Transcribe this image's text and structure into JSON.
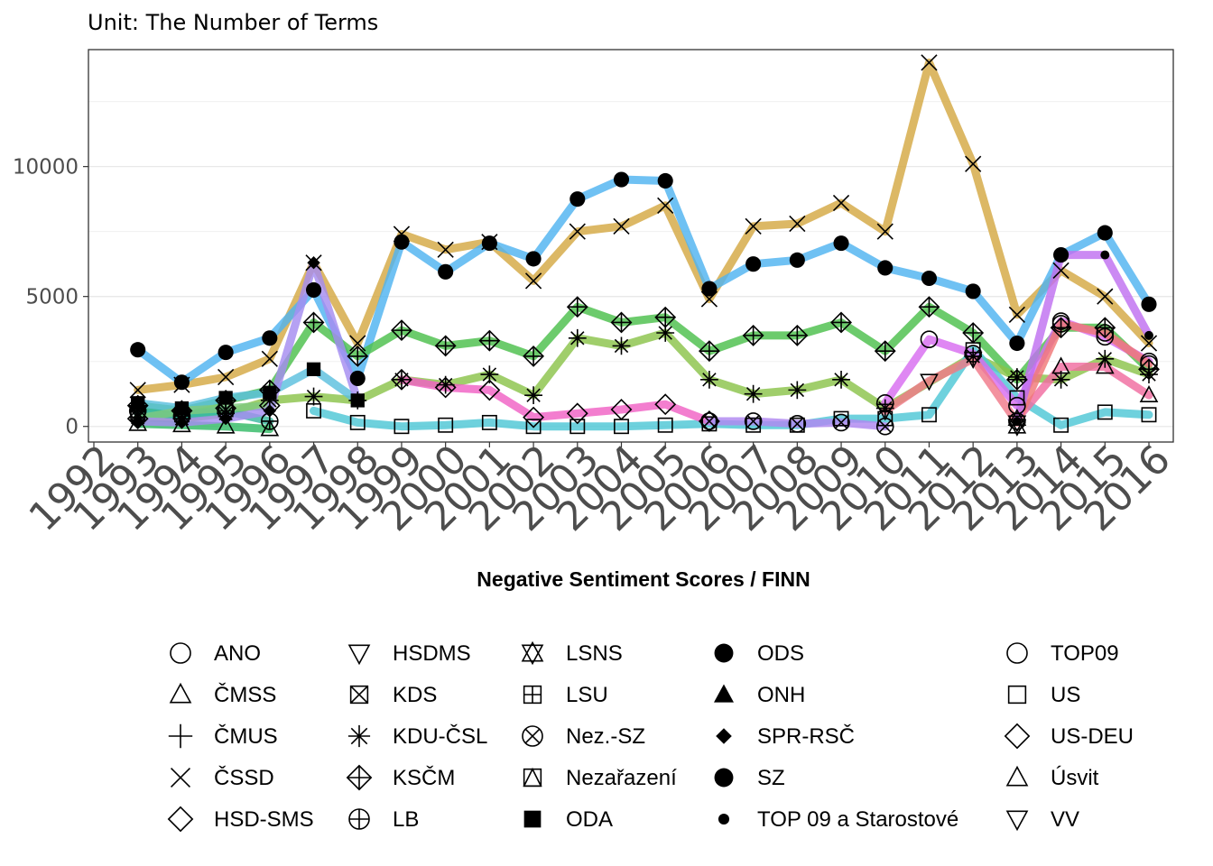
{
  "chart_data": {
    "type": "line",
    "title": "",
    "subtitle": "Unit: The Number of Terms",
    "xlabel": "Negative Sentiment Scores / FINN",
    "ylabel": "",
    "x": [
      1992,
      1993,
      1994,
      1995,
      1996,
      1997,
      1998,
      1999,
      2000,
      2001,
      2002,
      2003,
      2004,
      2005,
      2006,
      2007,
      2008,
      2009,
      2010,
      2011,
      2012,
      2013,
      2014,
      2015,
      2016
    ],
    "x_tick_labels": [
      "1992",
      "1993",
      "1994",
      "1995",
      "1996",
      "1997",
      "1998",
      "1999",
      "2000",
      "2001",
      "2002",
      "2003",
      "2004",
      "2005",
      "2006",
      "2007",
      "2008",
      "2009",
      "2010",
      "2011",
      "2012",
      "2013",
      "2014",
      "2015",
      "2016"
    ],
    "y_ticks": [
      0,
      5000,
      10000
    ],
    "y_tick_labels": [
      "0",
      "5000",
      "10000"
    ],
    "ylim": [
      -600,
      14500
    ],
    "grid": true,
    "legend_position": "bottom",
    "series": [
      {
        "name": "ČSSD",
        "color": "#D4A843",
        "shape": "x",
        "points": [
          [
            1993,
            1400
          ],
          [
            1994,
            1600
          ],
          [
            1995,
            1900
          ],
          [
            1996,
            2600
          ],
          [
            1997,
            6300
          ],
          [
            1998,
            3200
          ],
          [
            1999,
            7400
          ],
          [
            2000,
            6800
          ],
          [
            2001,
            7100
          ],
          [
            2002,
            5600
          ],
          [
            2003,
            7500
          ],
          [
            2004,
            7700
          ],
          [
            2005,
            8500
          ],
          [
            2006,
            4900
          ],
          [
            2007,
            7700
          ],
          [
            2008,
            7800
          ],
          [
            2009,
            8600
          ],
          [
            2010,
            7500
          ],
          [
            2011,
            14000
          ],
          [
            2012,
            10100
          ],
          [
            2013,
            4300
          ],
          [
            2014,
            6000
          ],
          [
            2015,
            5000
          ],
          [
            2016,
            3200
          ]
        ]
      },
      {
        "name": "ODS",
        "color": "#4FB3F0",
        "shape": "circle-filled",
        "points": [
          [
            1993,
            2950
          ],
          [
            1994,
            1700
          ],
          [
            1995,
            2850
          ],
          [
            1996,
            3400
          ],
          [
            1997,
            5250
          ],
          [
            1998,
            1850
          ],
          [
            1999,
            7100
          ],
          [
            2000,
            5950
          ],
          [
            2001,
            7050
          ],
          [
            2002,
            6450
          ],
          [
            2003,
            8750
          ],
          [
            2004,
            9500
          ],
          [
            2005,
            9450
          ],
          [
            2006,
            5300
          ],
          [
            2007,
            6250
          ],
          [
            2008,
            6400
          ],
          [
            2009,
            7050
          ],
          [
            2010,
            6100
          ],
          [
            2011,
            5700
          ],
          [
            2012,
            5200
          ],
          [
            2013,
            3200
          ],
          [
            2014,
            6600
          ],
          [
            2015,
            7450
          ],
          [
            2016,
            4700
          ]
        ]
      },
      {
        "name": "KSČM",
        "color": "#4CC04C",
        "shape": "diamond-plus",
        "points": [
          [
            1993,
            800
          ],
          [
            1994,
            600
          ],
          [
            1995,
            1000
          ],
          [
            1996,
            1400
          ],
          [
            1997,
            4000
          ],
          [
            1998,
            2700
          ],
          [
            1999,
            3700
          ],
          [
            2000,
            3100
          ],
          [
            2001,
            3300
          ],
          [
            2002,
            2700
          ],
          [
            2003,
            4600
          ],
          [
            2004,
            4000
          ],
          [
            2005,
            4200
          ],
          [
            2006,
            2900
          ],
          [
            2007,
            3500
          ],
          [
            2008,
            3500
          ],
          [
            2009,
            4000
          ],
          [
            2010,
            2900
          ],
          [
            2011,
            4600
          ],
          [
            2012,
            3600
          ],
          [
            2013,
            1800
          ],
          [
            2014,
            3800
          ],
          [
            2015,
            3800
          ],
          [
            2016,
            2200
          ]
        ]
      },
      {
        "name": "KDU-ČSL",
        "color": "#8BC34A",
        "shape": "asterisk",
        "points": [
          [
            1993,
            350
          ],
          [
            1994,
            300
          ],
          [
            1995,
            500
          ],
          [
            1996,
            1000
          ],
          [
            1997,
            1150
          ],
          [
            1998,
            1000
          ],
          [
            1999,
            1800
          ],
          [
            2000,
            1600
          ],
          [
            2001,
            2000
          ],
          [
            2002,
            1200
          ],
          [
            2003,
            3400
          ],
          [
            2004,
            3100
          ],
          [
            2005,
            3600
          ],
          [
            2006,
            1800
          ],
          [
            2007,
            1250
          ],
          [
            2008,
            1400
          ],
          [
            2009,
            1800
          ],
          [
            2010,
            700
          ],
          [
            2012,
            2700
          ],
          [
            2013,
            1900
          ],
          [
            2014,
            1800
          ],
          [
            2015,
            2600
          ],
          [
            2016,
            2000
          ]
        ]
      },
      {
        "name": "KDS",
        "color": "#2EC4A6",
        "shape": "square-x",
        "points": [
          [
            1993,
            500
          ],
          [
            1994,
            450
          ],
          [
            1995,
            650
          ]
        ]
      },
      {
        "name": "LB",
        "color": "#3CB8A0",
        "shape": "circle-plus",
        "points": [
          [
            1993,
            600
          ],
          [
            1994,
            400
          ],
          [
            1995,
            600
          ],
          [
            1996,
            200
          ]
        ]
      },
      {
        "name": "ODA",
        "color": "#5BC0DE",
        "shape": "square-filled",
        "points": [
          [
            1993,
            900
          ],
          [
            1994,
            700
          ],
          [
            1995,
            1100
          ],
          [
            1996,
            1300
          ],
          [
            1997,
            2200
          ],
          [
            1998,
            1000
          ]
        ]
      },
      {
        "name": "ČMSS",
        "color": "#33BB66",
        "shape": "triangle",
        "points": [
          [
            1993,
            100
          ],
          [
            1994,
            50
          ],
          [
            1995,
            0
          ],
          [
            1996,
            -100
          ]
        ]
      },
      {
        "name": "HSD-SMS",
        "color": "#7FC97F",
        "shape": "diamond",
        "points": [
          [
            1993,
            300
          ],
          [
            1994,
            600
          ],
          [
            1995,
            700
          ],
          [
            1996,
            800
          ]
        ]
      },
      {
        "name": "SPR-RSČ",
        "color": "#A58CF0",
        "shape": "diamond-filled",
        "points": [
          [
            1993,
            200
          ],
          [
            1994,
            150
          ],
          [
            1995,
            300
          ],
          [
            1996,
            600
          ],
          [
            1997,
            6300
          ],
          [
            1998,
            1000
          ]
        ]
      },
      {
        "name": "US",
        "color": "#4EC7D6",
        "shape": "square",
        "points": [
          [
            1997,
            600
          ],
          [
            1998,
            150
          ],
          [
            1999,
            0
          ],
          [
            2000,
            50
          ],
          [
            2001,
            150
          ],
          [
            2002,
            0
          ],
          [
            2003,
            0
          ],
          [
            2004,
            0
          ],
          [
            2005,
            50
          ],
          [
            2006,
            100
          ],
          [
            2007,
            50
          ],
          [
            2008,
            50
          ],
          [
            2009,
            300
          ],
          [
            2010,
            300
          ],
          [
            2011,
            450
          ],
          [
            2012,
            2950
          ],
          [
            2013,
            1100
          ],
          [
            2014,
            50
          ],
          [
            2015,
            550
          ],
          [
            2016,
            450
          ]
        ]
      },
      {
        "name": "US-DEU",
        "color": "#F062C4",
        "shape": "diamond",
        "points": [
          [
            1999,
            1800
          ],
          [
            2000,
            1500
          ],
          [
            2001,
            1400
          ],
          [
            2002,
            350
          ],
          [
            2003,
            500
          ],
          [
            2004,
            650
          ],
          [
            2005,
            850
          ],
          [
            2006,
            200
          ]
        ]
      },
      {
        "name": "Nez.-SZ",
        "color": "#B087F0",
        "shape": "circle-x",
        "points": [
          [
            2006,
            200
          ],
          [
            2007,
            200
          ],
          [
            2008,
            100
          ],
          [
            2009,
            150
          ],
          [
            2010,
            0
          ]
        ]
      },
      {
        "name": "TOP09",
        "color": "#D86CF0",
        "shape": "circle",
        "points": [
          [
            2010,
            900
          ],
          [
            2011,
            3350
          ],
          [
            2012,
            2800
          ],
          [
            2013,
            800
          ],
          [
            2014,
            4050
          ],
          [
            2015,
            3450
          ],
          [
            2016,
            2500
          ]
        ]
      },
      {
        "name": "VV",
        "color": "#F07A8A",
        "shape": "triangle-down",
        "points": [
          [
            2010,
            600
          ],
          [
            2011,
            1750
          ],
          [
            2012,
            2600
          ],
          [
            2013,
            150
          ]
        ]
      },
      {
        "name": "Úsvit",
        "color": "#F06CA0",
        "shape": "triangle",
        "points": [
          [
            2013,
            300
          ],
          [
            2014,
            2300
          ],
          [
            2015,
            2300
          ],
          [
            2016,
            1200
          ]
        ]
      },
      {
        "name": "ANO",
        "color": "#F07878",
        "shape": "circle",
        "points": [
          [
            2013,
            200
          ],
          [
            2014,
            3950
          ],
          [
            2015,
            3600
          ],
          [
            2016,
            2400
          ]
        ]
      },
      {
        "name": "TOP 09 a Starostové",
        "color": "#C070F0",
        "shape": "dot",
        "points": [
          [
            2013,
            200
          ],
          [
            2014,
            6600
          ],
          [
            2015,
            6600
          ],
          [
            2016,
            3500
          ]
        ]
      },
      {
        "name": "LSNS",
        "color": "#90A0F0",
        "shape": "star6",
        "points": [
          [
            2013,
            0
          ]
        ]
      }
    ],
    "legend": [
      {
        "label": "ANO",
        "shape": "circle"
      },
      {
        "label": "ČMSS",
        "shape": "triangle"
      },
      {
        "label": "ČMUS",
        "shape": "plus"
      },
      {
        "label": "ČSSD",
        "shape": "x"
      },
      {
        "label": "HSD-SMS",
        "shape": "diamond"
      },
      {
        "label": "HSDMS",
        "shape": "triangle-down"
      },
      {
        "label": "KDS",
        "shape": "square-x"
      },
      {
        "label": "KDU-ČSL",
        "shape": "asterisk"
      },
      {
        "label": "KSČM",
        "shape": "diamond-plus"
      },
      {
        "label": "LB",
        "shape": "circle-plus"
      },
      {
        "label": "LSNS",
        "shape": "star6"
      },
      {
        "label": "LSU",
        "shape": "square-plus"
      },
      {
        "label": "Nez.-SZ",
        "shape": "circle-x"
      },
      {
        "label": "Nezařazení",
        "shape": "square-triangle"
      },
      {
        "label": "ODA",
        "shape": "square-filled"
      },
      {
        "label": "ODS",
        "shape": "circle-filled"
      },
      {
        "label": "ONH",
        "shape": "triangle-filled"
      },
      {
        "label": "SPR-RSČ",
        "shape": "diamond-filled"
      },
      {
        "label": "SZ",
        "shape": "circle-filled"
      },
      {
        "label": "TOP 09 a Starostové",
        "shape": "dot"
      },
      {
        "label": "TOP09",
        "shape": "circle"
      },
      {
        "label": "US",
        "shape": "square"
      },
      {
        "label": "US-DEU",
        "shape": "diamond"
      },
      {
        "label": "Úsvit",
        "shape": "triangle"
      },
      {
        "label": "VV",
        "shape": "triangle-down"
      }
    ]
  }
}
